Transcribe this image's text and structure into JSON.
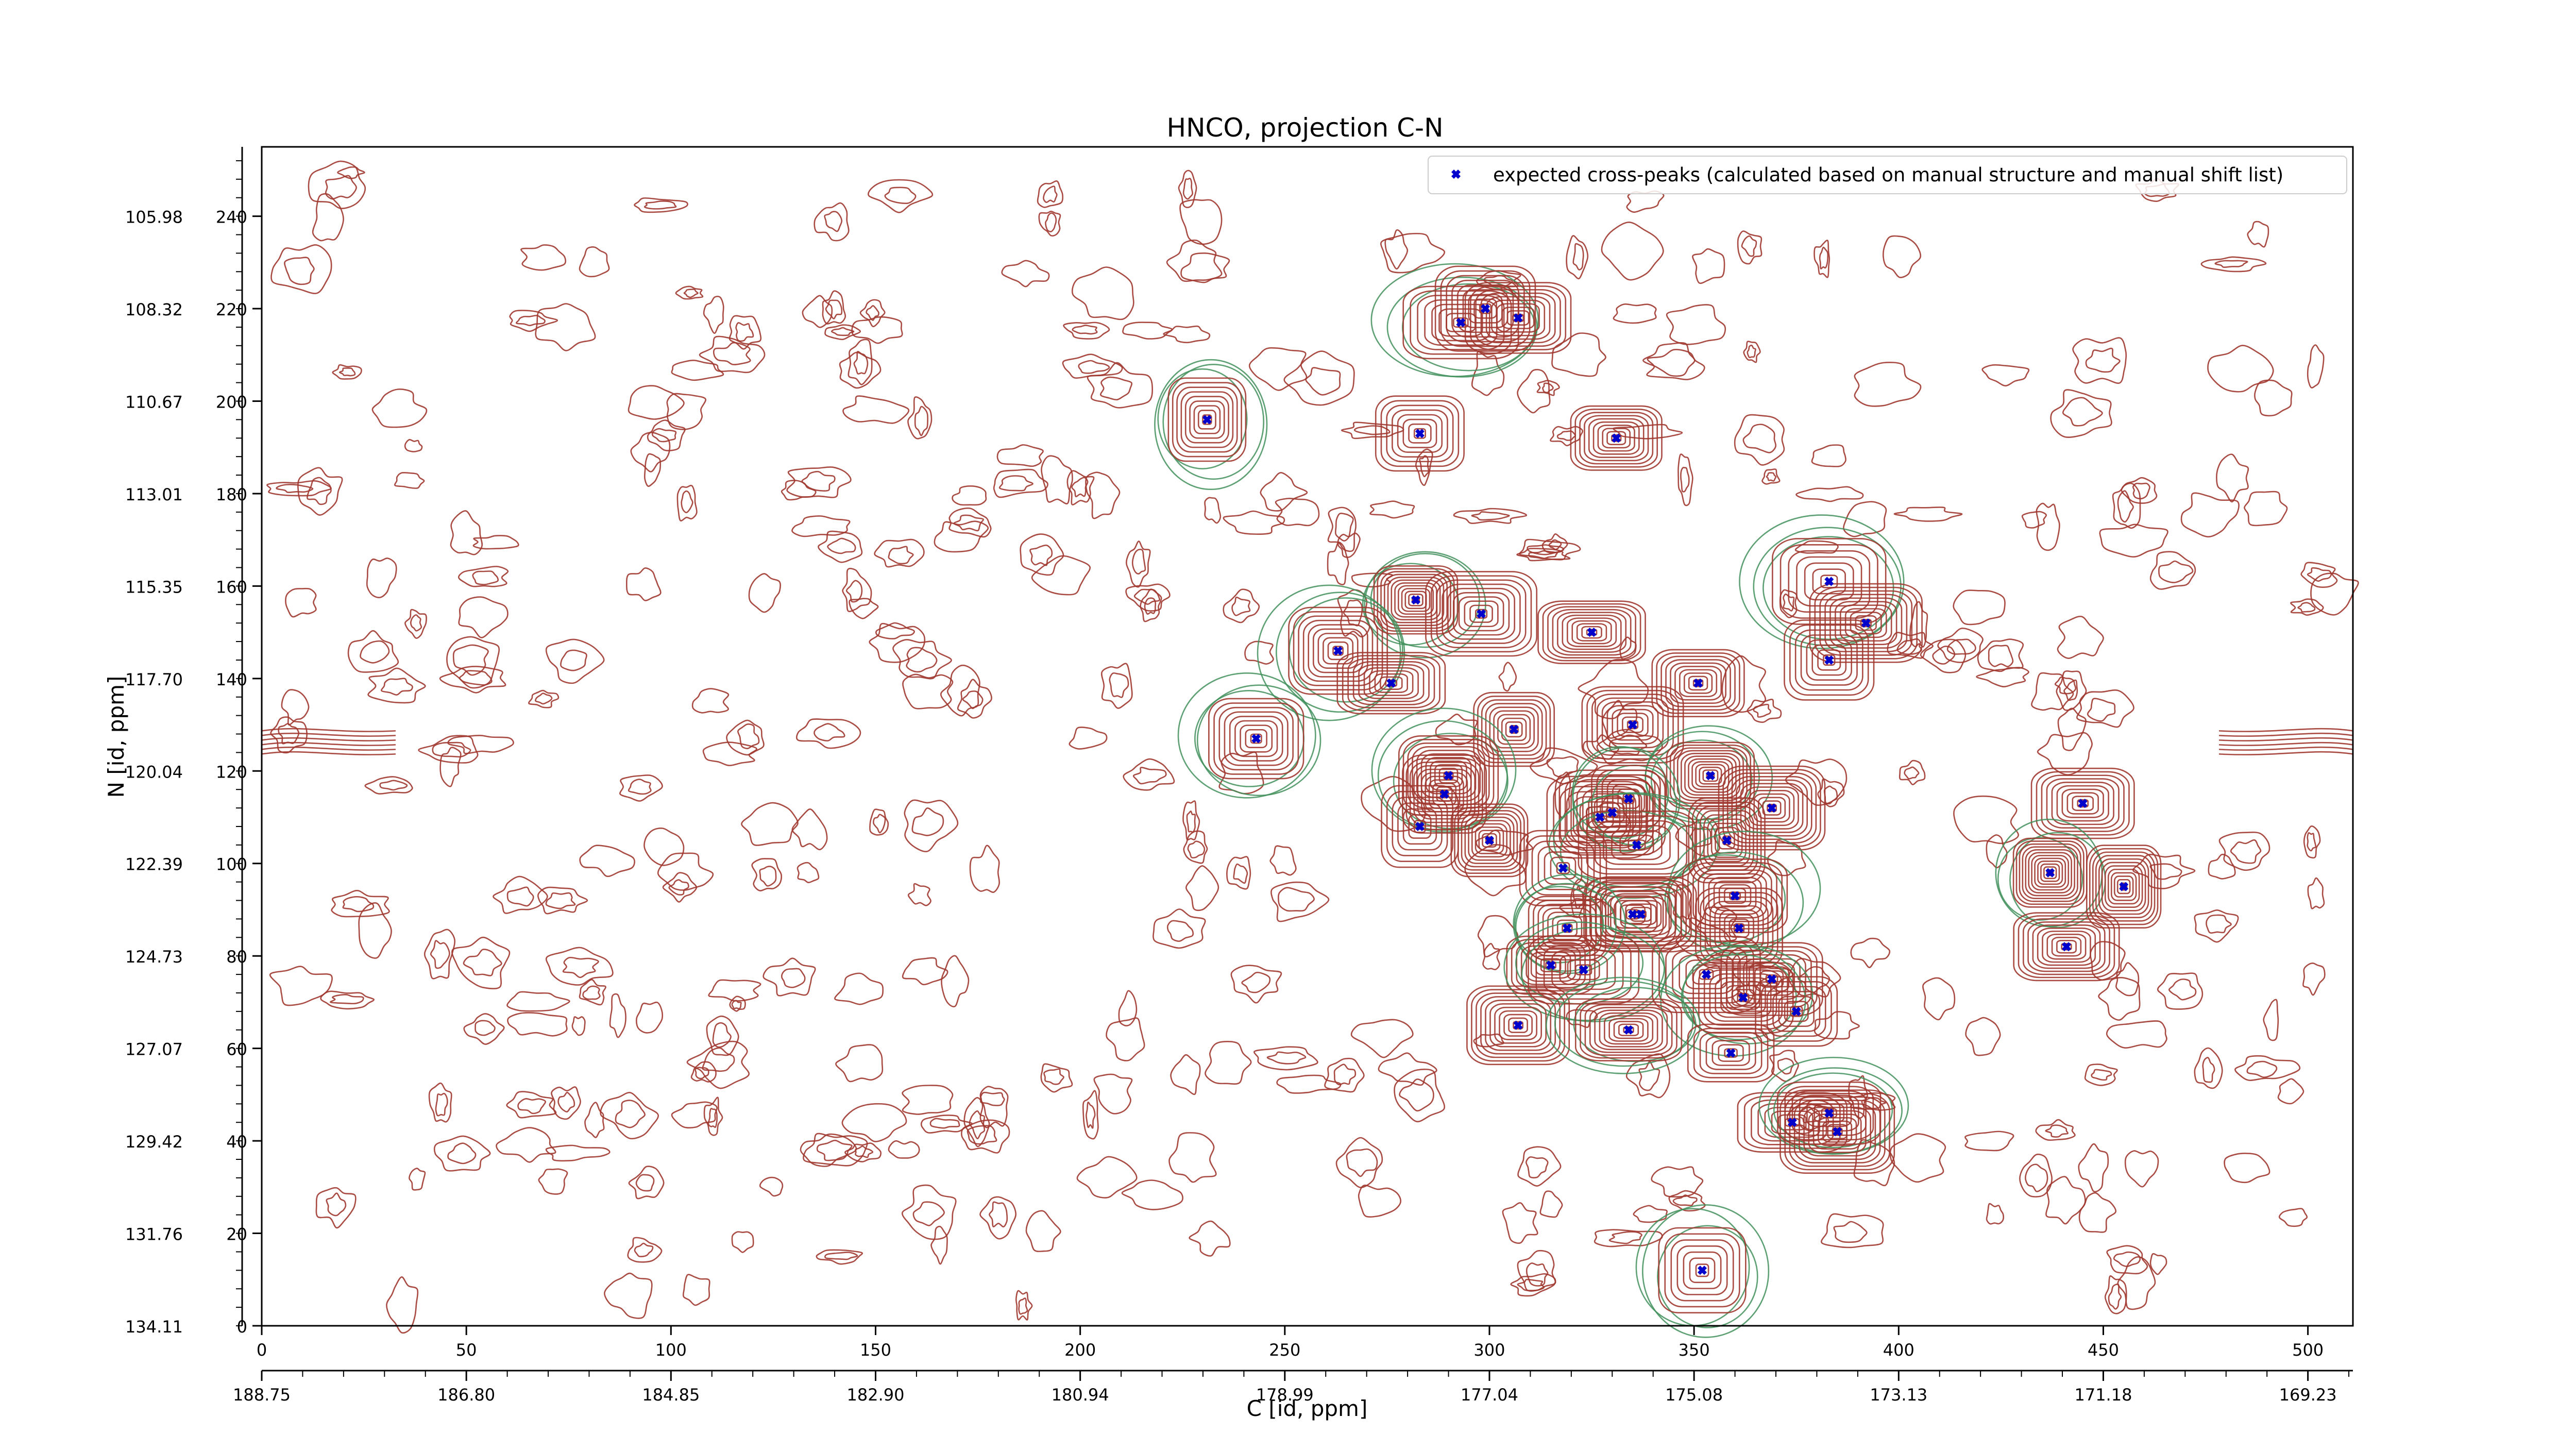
{
  "chart_data": {
    "type": "scatter",
    "title": "HNCO, projection C-N",
    "xlabel": "C [id, ppm]",
    "ylabel": "N [id, ppm]",
    "xlim": [
      0,
      511
    ],
    "ylim": [
      0,
      255
    ],
    "x_ticks": [
      0,
      50,
      100,
      150,
      200,
      250,
      300,
      350,
      400,
      450,
      500
    ],
    "y_ticks": [
      0,
      20,
      40,
      60,
      80,
      100,
      120,
      140,
      160,
      180,
      200,
      220,
      240
    ],
    "x_ppm_ticks": [
      "188.75",
      "186.80",
      "184.85",
      "182.90",
      "180.94",
      "178.99",
      "177.04",
      "175.08",
      "173.13",
      "171.18",
      "169.23"
    ],
    "y_ppm_ticks": [
      "134.11",
      "131.76",
      "129.42",
      "127.07",
      "124.73",
      "122.39",
      "120.04",
      "117.70",
      "115.35",
      "113.01",
      "110.67",
      "108.32",
      "105.98"
    ],
    "legend_position": "top-right",
    "grid": false,
    "contour_colors": {
      "positive": "#a0372f",
      "negative": "#3f8f5a"
    },
    "series": [
      {
        "name": "expected cross-peaks (calculated based on manual structure and manual shift list)",
        "color": "#0000cc",
        "points": [
          {
            "x": 293,
            "y": 217
          },
          {
            "x": 299,
            "y": 220
          },
          {
            "x": 307,
            "y": 218
          },
          {
            "x": 231,
            "y": 196
          },
          {
            "x": 283,
            "y": 193
          },
          {
            "x": 331,
            "y": 192
          },
          {
            "x": 282,
            "y": 157
          },
          {
            "x": 298,
            "y": 154
          },
          {
            "x": 325,
            "y": 150
          },
          {
            "x": 383,
            "y": 161
          },
          {
            "x": 392,
            "y": 152
          },
          {
            "x": 383,
            "y": 144
          },
          {
            "x": 263,
            "y": 146
          },
          {
            "x": 276,
            "y": 139
          },
          {
            "x": 351,
            "y": 139
          },
          {
            "x": 243,
            "y": 127
          },
          {
            "x": 306,
            "y": 129
          },
          {
            "x": 335,
            "y": 130
          },
          {
            "x": 290,
            "y": 119
          },
          {
            "x": 289,
            "y": 115
          },
          {
            "x": 283,
            "y": 108
          },
          {
            "x": 354,
            "y": 119
          },
          {
            "x": 327,
            "y": 110
          },
          {
            "x": 330,
            "y": 111
          },
          {
            "x": 334,
            "y": 114
          },
          {
            "x": 369,
            "y": 112
          },
          {
            "x": 300,
            "y": 105
          },
          {
            "x": 336,
            "y": 104
          },
          {
            "x": 358,
            "y": 105
          },
          {
            "x": 318,
            "y": 99
          },
          {
            "x": 360,
            "y": 93
          },
          {
            "x": 335,
            "y": 89
          },
          {
            "x": 337,
            "y": 89
          },
          {
            "x": 319,
            "y": 86
          },
          {
            "x": 361,
            "y": 86
          },
          {
            "x": 315,
            "y": 78
          },
          {
            "x": 323,
            "y": 77
          },
          {
            "x": 353,
            "y": 76
          },
          {
            "x": 369,
            "y": 75
          },
          {
            "x": 362,
            "y": 71
          },
          {
            "x": 375,
            "y": 68
          },
          {
            "x": 307,
            "y": 65
          },
          {
            "x": 334,
            "y": 64
          },
          {
            "x": 359,
            "y": 59
          },
          {
            "x": 374,
            "y": 44
          },
          {
            "x": 383,
            "y": 46
          },
          {
            "x": 385,
            "y": 42
          },
          {
            "x": 445,
            "y": 113
          },
          {
            "x": 437,
            "y": 98
          },
          {
            "x": 455,
            "y": 95
          },
          {
            "x": 441,
            "y": 82
          },
          {
            "x": 352,
            "y": 12
          }
        ]
      }
    ]
  }
}
